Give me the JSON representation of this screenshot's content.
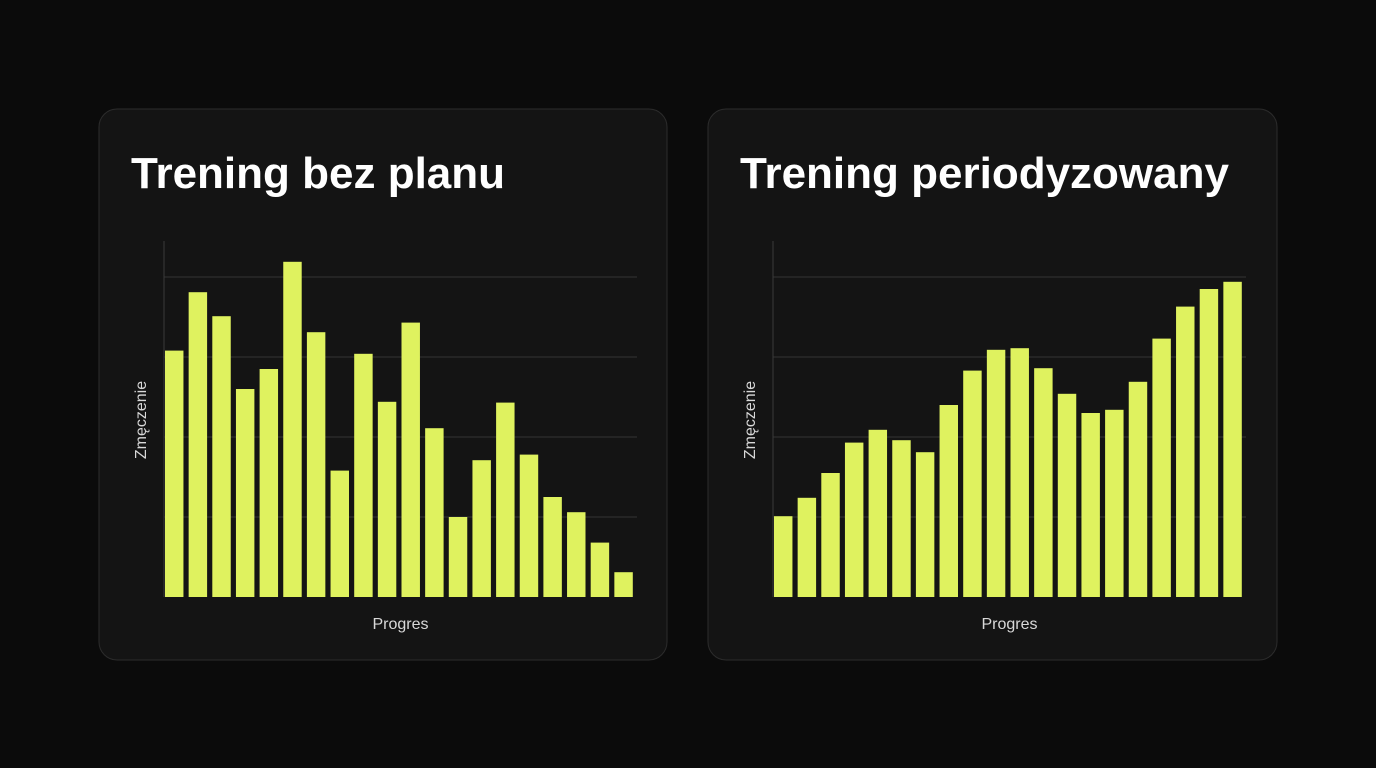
{
  "chart_data": [
    {
      "type": "bar",
      "title": "Trening bez planu",
      "x_label": "Progres",
      "y_label": "Zmęczenie",
      "values": [
        3.08,
        3.81,
        3.51,
        2.6,
        2.85,
        4.19,
        3.31,
        1.58,
        3.04,
        2.44,
        3.43,
        2.11,
        1.0,
        1.71,
        2.43,
        1.78,
        1.25,
        1.06,
        0.68,
        0.31
      ],
      "color": "#dff25f",
      "ylim": [
        0,
        4.45
      ],
      "yticks": [
        1,
        2,
        3,
        4
      ],
      "grid": true
    },
    {
      "type": "bar",
      "title": "Trening periodyzowany",
      "x_label": "Progres",
      "y_label": "Zmęczenie",
      "values": [
        1.01,
        1.24,
        1.55,
        1.93,
        2.09,
        1.96,
        1.81,
        2.4,
        2.83,
        3.09,
        3.11,
        2.86,
        2.54,
        2.3,
        2.34,
        2.69,
        3.23,
        3.63,
        3.85,
        3.94
      ],
      "color": "#dff25f",
      "ylim": [
        0,
        4.45
      ],
      "yticks": [
        1,
        2,
        3,
        4
      ],
      "grid": true
    }
  ]
}
